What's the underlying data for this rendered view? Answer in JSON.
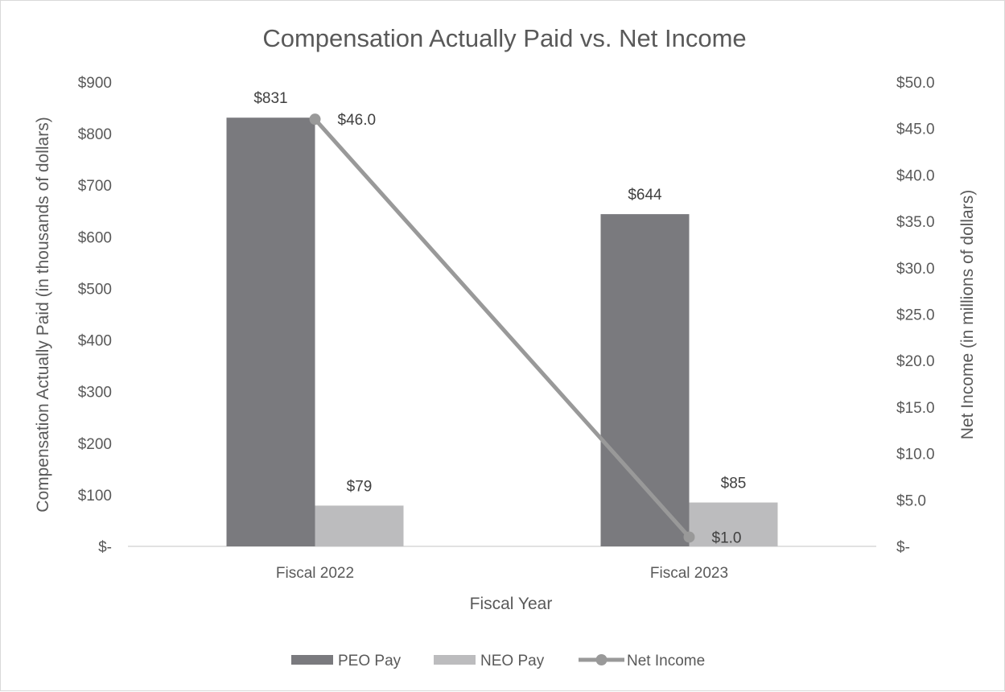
{
  "chart_data": {
    "type": "bar",
    "title": "Compensation Actually Paid vs. Net Income",
    "xlabel": "Fiscal Year",
    "ylabel": "Compensation Actually Paid (in thousands of dollars)",
    "y2label": "Net Income (in millions of dollars)",
    "categories": [
      "Fiscal 2022",
      "Fiscal 2023"
    ],
    "ylim": [
      0,
      900
    ],
    "y2lim": [
      0,
      50
    ],
    "yticks": [
      "$-",
      "$100",
      "$200",
      "$300",
      "$400",
      "$500",
      "$600",
      "$700",
      "$800",
      "$900"
    ],
    "y2ticks": [
      "$-",
      "$5.0",
      "$10.0",
      "$15.0",
      "$20.0",
      "$25.0",
      "$30.0",
      "$35.0",
      "$40.0",
      "$45.0",
      "$50.0"
    ],
    "grid": false,
    "legend_position": "bottom",
    "series": [
      {
        "name": "PEO Pay",
        "type": "bar",
        "axis": "left",
        "values": [
          831,
          644
        ],
        "labels": [
          "$831",
          "$644"
        ],
        "color": "#7a7a7e"
      },
      {
        "name": "NEO Pay",
        "type": "bar",
        "axis": "left",
        "values": [
          79,
          85
        ],
        "labels": [
          "$79",
          "$85"
        ],
        "color": "#bcbcbe"
      },
      {
        "name": "Net Income",
        "type": "line",
        "axis": "right",
        "values": [
          46.0,
          1.0
        ],
        "labels": [
          "$46.0",
          "$1.0"
        ],
        "color": "#999999"
      }
    ]
  }
}
